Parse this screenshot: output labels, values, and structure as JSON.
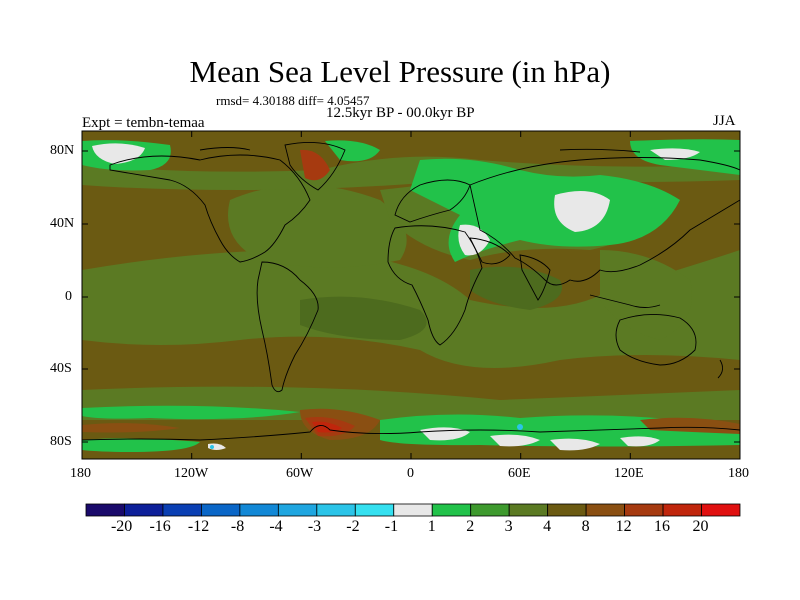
{
  "title": "Mean Sea Level Pressure (in hPa)",
  "stats": "rmsd= 4.30188 diff= 4.05457",
  "period": "12.5kyr BP - 00.0kyr BP",
  "experiment": "Expt = tembn-temaa",
  "season": "JJA",
  "lat_labels": [
    "80N",
    "40N",
    "0",
    "40S",
    "80S"
  ],
  "lon_labels": [
    "180",
    "120W",
    "60W",
    "0",
    "60E",
    "120E",
    "180"
  ],
  "colorbar": {
    "labels": [
      "-20",
      "-16",
      "-12",
      "-8",
      "-4",
      "-3",
      "-2",
      "-1",
      "1",
      "2",
      "3",
      "4",
      "8",
      "12",
      "16",
      "20"
    ],
    "colors": [
      "#1a0a6b",
      "#0d1f99",
      "#0a3fb3",
      "#0a66c7",
      "#1288d6",
      "#1fa6e0",
      "#2bc4e8",
      "#35e0f0",
      "#e8e8e8",
      "#22c24a",
      "#3e9a2e",
      "#5b7a23",
      "#6b5a12",
      "#8a4f12",
      "#a63a10",
      "#c0260c",
      "#e01010"
    ]
  },
  "colors": {
    "background_field": "#6b5a12",
    "land_outline": "#000000"
  }
}
